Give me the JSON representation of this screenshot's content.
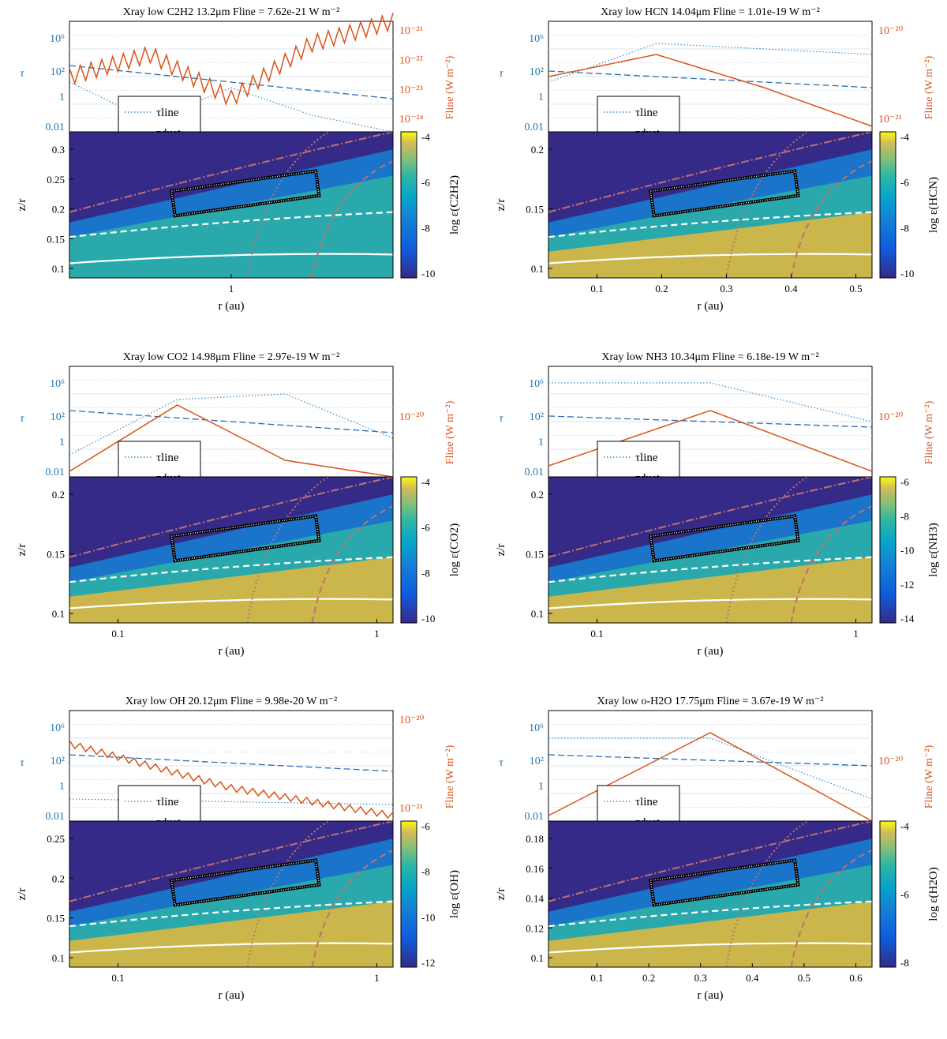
{
  "figure": "Six-panel grid of line optical depth, line flux and molecular abundance for the Xray low model",
  "colors": {
    "tau_line": "#3b8bc2",
    "tau_dust": "#2a6fb0",
    "F_line": "#d95319",
    "contour": "#c07070",
    "box": "#000000",
    "bg": "#352a87"
  },
  "legend": {
    "tau_line": "τline",
    "tau_dust": "τdust",
    "F_line": "Fline"
  },
  "chart_data": [
    {
      "title": "Xray low C2H2 13.2μm Fline = 7.62e-21 W m⁻²",
      "type": "line",
      "tau_label": "τ",
      "tau_ticks": [
        "10⁶",
        "10²",
        "1",
        "0.01"
      ],
      "flux_label": "Fline (W m⁻²)",
      "flux_ticks": [
        "10⁻²¹",
        "10⁻²²",
        "10⁻²³",
        "10⁻²⁴"
      ],
      "zr_label": "z/r",
      "zr_ticks": [
        "0.3",
        "0.25",
        "0.2",
        "0.15",
        "0.1"
      ],
      "r_label": "r (au)",
      "r_ticks": [
        "1"
      ],
      "cbar_label": "log ε(C2H2)",
      "cbar_ticks": [
        "-4",
        "-6",
        "-8",
        "-10"
      ],
      "tau_dust_y": [
        0.4,
        0.7
      ],
      "tau_line_y": [
        0.55,
        0.9,
        0.6,
        0.85,
        1.0
      ],
      "f_line_y": [
        0.5,
        0.3,
        0.7,
        0.2,
        0.0
      ]
    },
    {
      "title": "Xray low HCN 14.04μm Fline = 1.01e-19 W m⁻²",
      "type": "line",
      "tau_label": "τ",
      "tau_ticks": [
        "10⁶",
        "10²",
        "1",
        "0.01"
      ],
      "flux_label": "Fline (W m⁻²)",
      "flux_ticks": [
        "10⁻²⁰",
        "10⁻²¹"
      ],
      "zr_label": "z/r",
      "zr_ticks": [
        "0.2",
        "0.15",
        "0.1"
      ],
      "r_label": "r (au)",
      "r_ticks": [
        "0.1",
        "0.2",
        "0.3",
        "0.4",
        "0.5"
      ],
      "cbar_label": "log ε(HCN)",
      "cbar_ticks": [
        "-4",
        "-6",
        "-8",
        "-10"
      ],
      "tau_dust_y": [
        0.45,
        0.6
      ],
      "tau_line_y": [
        0.55,
        0.2,
        0.25,
        0.3
      ],
      "f_line_y": [
        0.5,
        0.3,
        0.6,
        0.95
      ]
    },
    {
      "title": "Xray low CO2 14.98μm Fline = 2.97e-19 W m⁻²",
      "type": "line",
      "tau_label": "τ",
      "tau_ticks": [
        "10⁶",
        "10²",
        "1",
        "0.01"
      ],
      "flux_label": "Fline (W m⁻²)",
      "flux_ticks": [
        "10⁻²⁰"
      ],
      "zr_label": "z/r",
      "zr_ticks": [
        "0.2",
        "0.15",
        "0.1"
      ],
      "r_label": "r (au)",
      "r_ticks": [
        "0.1",
        "1"
      ],
      "cbar_label": "log ε(CO2)",
      "cbar_ticks": [
        "-4",
        "-6",
        "-8",
        "-10"
      ],
      "tau_dust_y": [
        0.4,
        0.6
      ],
      "tau_line_y": [
        0.8,
        0.3,
        0.25,
        0.65
      ],
      "f_line_y": [
        0.95,
        0.35,
        0.85,
        1.0
      ]
    },
    {
      "title": "Xray low NH3 10.34μm Fline = 6.18e-19 W m⁻²",
      "type": "line",
      "tau_label": "τ",
      "tau_ticks": [
        "10⁶",
        "10²",
        "1",
        "0.01"
      ],
      "flux_label": "Fline (W m⁻²)",
      "flux_ticks": [
        "10⁻²⁰"
      ],
      "zr_label": "z/r",
      "zr_ticks": [
        "0.2",
        "0.15",
        "0.1"
      ],
      "r_label": "r (au)",
      "r_ticks": [
        "0.1",
        "1"
      ],
      "cbar_label": "log ε(NH3)",
      "cbar_ticks": [
        "-6",
        "-8",
        "-10",
        "-12",
        "-14"
      ],
      "tau_dust_y": [
        0.45,
        0.55
      ],
      "tau_line_y": [
        0.15,
        0.15,
        0.5
      ],
      "f_line_y": [
        0.9,
        0.4,
        0.95
      ]
    },
    {
      "title": "Xray low OH 20.12μm Fline = 9.98e-20 W m⁻²",
      "type": "line",
      "tau_label": "τ",
      "tau_ticks": [
        "10⁶",
        "10²",
        "1",
        "0.01"
      ],
      "flux_label": "Fline (W m⁻²)",
      "flux_ticks": [
        "10⁻²⁰",
        "10⁻²¹"
      ],
      "zr_label": "z/r",
      "zr_ticks": [
        "0.25",
        "0.2",
        "0.15",
        "0.1"
      ],
      "r_label": "r (au)",
      "r_ticks": [
        "0.1",
        "1"
      ],
      "cbar_label": "log ε(OH)",
      "cbar_ticks": [
        "-6",
        "-8",
        "-10",
        "-12"
      ],
      "tau_dust_y": [
        0.4,
        0.55
      ],
      "tau_line_y": [
        0.8,
        0.85
      ],
      "f_line_y": [
        0.3,
        0.7,
        0.95
      ]
    },
    {
      "title": "Xray low o-H2O 17.75μm Fline = 3.67e-19 W m⁻²",
      "type": "line",
      "tau_label": "τ",
      "tau_ticks": [
        "10⁶",
        "10²",
        "1",
        "0.01"
      ],
      "flux_label": "Fline (W m⁻²)",
      "flux_ticks": [
        "10⁻²⁰"
      ],
      "zr_label": "z/r",
      "zr_ticks": [
        "0.18",
        "0.16",
        "0.14",
        "0.12",
        "0.1"
      ],
      "r_label": "r (au)",
      "r_ticks": [
        "0.1",
        "0.2",
        "0.3",
        "0.4",
        "0.5",
        "0.6"
      ],
      "cbar_label": "log ε(H2O)",
      "cbar_ticks": [
        "-4",
        "-6",
        "-8"
      ],
      "tau_dust_y": [
        0.4,
        0.5
      ],
      "tau_line_y": [
        0.25,
        0.25,
        0.8
      ],
      "f_line_y": [
        0.95,
        0.2,
        1.0
      ]
    }
  ]
}
